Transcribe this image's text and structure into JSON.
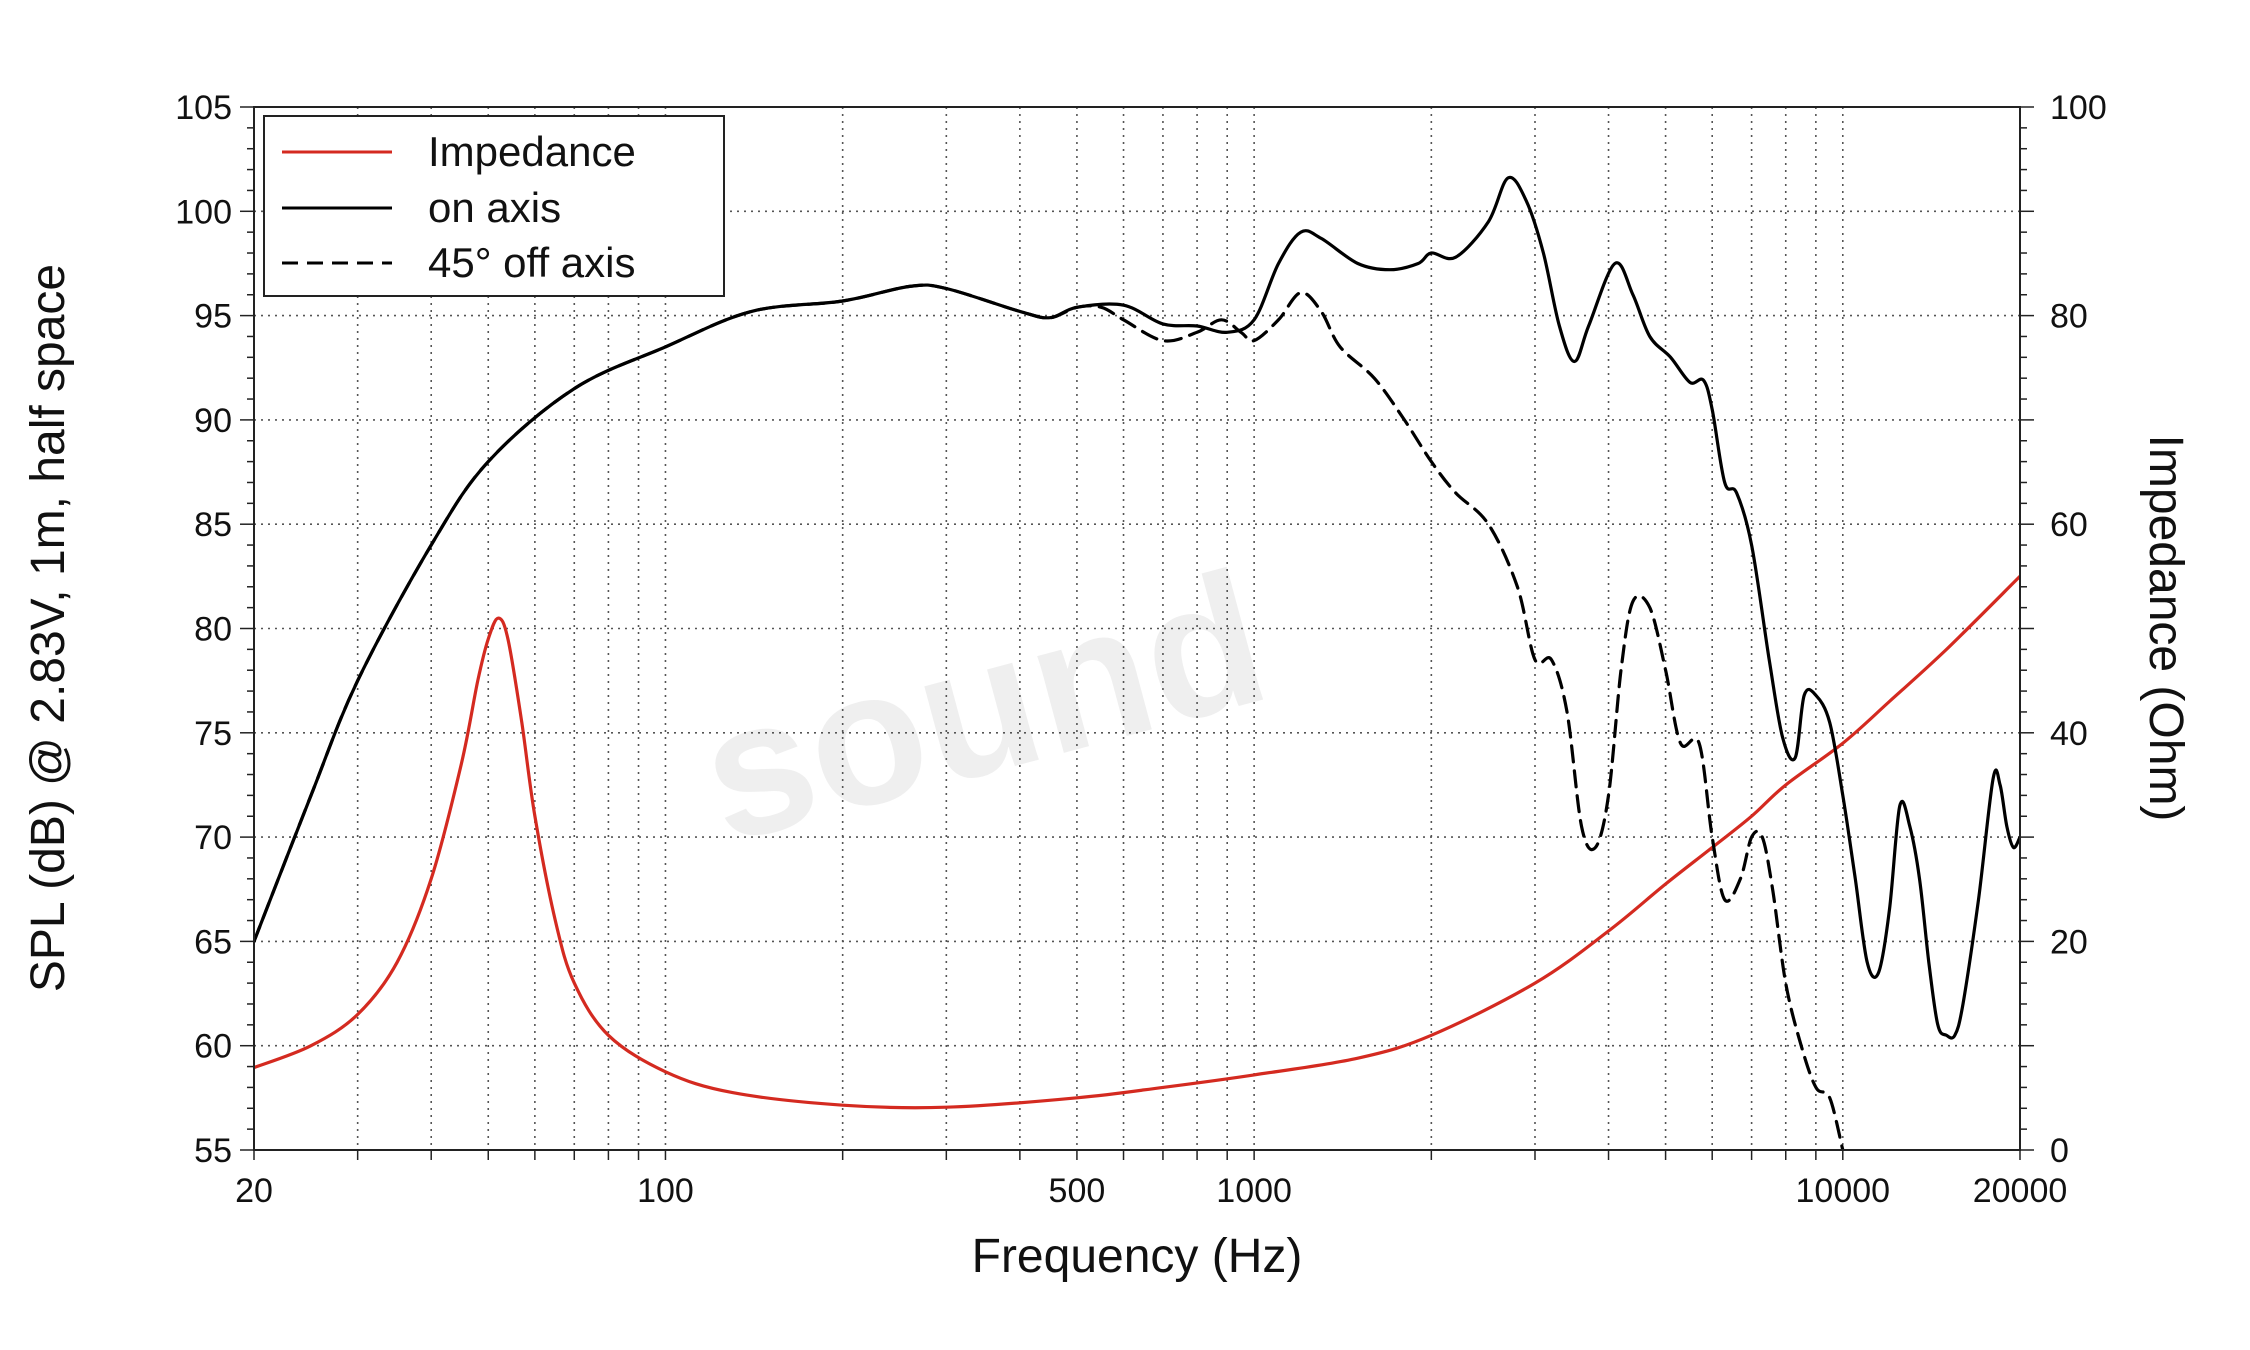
{
  "chart_data": {
    "type": "line",
    "xlabel": "Frequency (Hz)",
    "ylabel": "SPL (dB) @ 2.83V, 1m, half space",
    "y2label": "Impedance (Ohm)",
    "x_scale": "log",
    "xlim": [
      20,
      20000
    ],
    "ylim": [
      55,
      105
    ],
    "y2lim": [
      0,
      100
    ],
    "x_ticks": [
      {
        "value": 20,
        "label": "20"
      },
      {
        "value": 100,
        "label": "100"
      },
      {
        "value": 500,
        "label": "500"
      },
      {
        "value": 1000,
        "label": "1000"
      },
      {
        "value": 10000,
        "label": "10000"
      },
      {
        "value": 20000,
        "label": "20000"
      }
    ],
    "y_ticks": [
      55,
      60,
      65,
      70,
      75,
      80,
      85,
      90,
      95,
      100,
      105
    ],
    "y2_ticks": [
      0,
      20,
      40,
      60,
      80,
      100
    ],
    "grid": true,
    "legend_position": "top-left",
    "watermark": "sound",
    "series": [
      {
        "name": "Impedance",
        "axis": "right",
        "color": "#d42a20",
        "style": "solid",
        "points": [
          [
            20,
            7.9
          ],
          [
            25,
            10
          ],
          [
            30,
            13
          ],
          [
            35,
            18
          ],
          [
            40,
            26
          ],
          [
            45,
            37
          ],
          [
            48,
            45
          ],
          [
            50,
            49
          ],
          [
            52,
            51
          ],
          [
            54,
            49
          ],
          [
            57,
            41
          ],
          [
            60,
            32
          ],
          [
            65,
            22
          ],
          [
            70,
            16
          ],
          [
            80,
            11
          ],
          [
            100,
            7.5
          ],
          [
            130,
            5.5
          ],
          [
            200,
            4.3
          ],
          [
            300,
            4.1
          ],
          [
            500,
            5
          ],
          [
            700,
            6
          ],
          [
            1000,
            7.2
          ],
          [
            1500,
            8.8
          ],
          [
            2000,
            11
          ],
          [
            3000,
            16
          ],
          [
            4000,
            21
          ],
          [
            5000,
            25.5
          ],
          [
            6000,
            29
          ],
          [
            7000,
            32
          ],
          [
            8000,
            35
          ],
          [
            10000,
            39
          ],
          [
            12000,
            43
          ],
          [
            15000,
            48
          ],
          [
            20000,
            55
          ]
        ]
      },
      {
        "name": "on axis",
        "axis": "left",
        "color": "#000000",
        "style": "solid",
        "points": [
          [
            20,
            65
          ],
          [
            25,
            72
          ],
          [
            30,
            77.5
          ],
          [
            40,
            84
          ],
          [
            50,
            88
          ],
          [
            70,
            91.5
          ],
          [
            100,
            93.5
          ],
          [
            140,
            95.2
          ],
          [
            200,
            95.7
          ],
          [
            260,
            96.4
          ],
          [
            300,
            96.3
          ],
          [
            400,
            95.2
          ],
          [
            450,
            94.9
          ],
          [
            500,
            95.4
          ],
          [
            600,
            95.5
          ],
          [
            700,
            94.6
          ],
          [
            800,
            94.5
          ],
          [
            900,
            94.2
          ],
          [
            1000,
            94.8
          ],
          [
            1100,
            97.5
          ],
          [
            1200,
            99
          ],
          [
            1300,
            98.7
          ],
          [
            1500,
            97.5
          ],
          [
            1700,
            97.2
          ],
          [
            1900,
            97.5
          ],
          [
            2000,
            98
          ],
          [
            2200,
            97.8
          ],
          [
            2500,
            99.5
          ],
          [
            2700,
            101.6
          ],
          [
            2900,
            100.5
          ],
          [
            3100,
            98
          ],
          [
            3300,
            94.5
          ],
          [
            3500,
            92.8
          ],
          [
            3700,
            94.5
          ],
          [
            4100,
            97.5
          ],
          [
            4400,
            96
          ],
          [
            4700,
            94
          ],
          [
            5100,
            93
          ],
          [
            5500,
            91.8
          ],
          [
            5800,
            91.9
          ],
          [
            6000,
            90.5
          ],
          [
            6300,
            87
          ],
          [
            6600,
            86.5
          ],
          [
            7000,
            84
          ],
          [
            7500,
            78.5
          ],
          [
            7900,
            74.8
          ],
          [
            8300,
            73.8
          ],
          [
            8600,
            76.8
          ],
          [
            9000,
            76.8
          ],
          [
            9500,
            75.5
          ],
          [
            10000,
            72
          ],
          [
            10500,
            68
          ],
          [
            11000,
            64
          ],
          [
            11500,
            63.5
          ],
          [
            12000,
            66.5
          ],
          [
            12500,
            71.5
          ],
          [
            13000,
            70.5
          ],
          [
            13500,
            68
          ],
          [
            14000,
            64
          ],
          [
            14500,
            61
          ],
          [
            15000,
            60.5
          ],
          [
            15500,
            60.5
          ],
          [
            16000,
            62
          ],
          [
            17000,
            67
          ],
          [
            18000,
            72.8
          ],
          [
            18500,
            72.5
          ],
          [
            19000,
            70.5
          ],
          [
            19500,
            69.5
          ],
          [
            20000,
            70
          ]
        ]
      },
      {
        "name": "45° off axis",
        "axis": "left",
        "color": "#000000",
        "style": "dashed",
        "points": [
          [
            20,
            65
          ],
          [
            25,
            72
          ],
          [
            30,
            77.5
          ],
          [
            40,
            84
          ],
          [
            50,
            88
          ],
          [
            70,
            91.5
          ],
          [
            100,
            93.5
          ],
          [
            140,
            95.2
          ],
          [
            200,
            95.7
          ],
          [
            260,
            96.4
          ],
          [
            300,
            96.3
          ],
          [
            400,
            95.2
          ],
          [
            450,
            94.9
          ],
          [
            500,
            95.4
          ],
          [
            550,
            95.4
          ],
          [
            600,
            94.8
          ],
          [
            700,
            93.8
          ],
          [
            800,
            94.2
          ],
          [
            880,
            94.8
          ],
          [
            950,
            94.2
          ],
          [
            1000,
            93.8
          ],
          [
            1100,
            94.8
          ],
          [
            1200,
            96.1
          ],
          [
            1300,
            95.2
          ],
          [
            1400,
            93.5
          ],
          [
            1600,
            92
          ],
          [
            1800,
            90
          ],
          [
            2000,
            88
          ],
          [
            2200,
            86.5
          ],
          [
            2500,
            85
          ],
          [
            2800,
            82
          ],
          [
            3000,
            78.5
          ],
          [
            3200,
            78.5
          ],
          [
            3400,
            76
          ],
          [
            3600,
            70.5
          ],
          [
            3800,
            69.5
          ],
          [
            4000,
            72
          ],
          [
            4200,
            78
          ],
          [
            4400,
            81.3
          ],
          [
            4700,
            81
          ],
          [
            5000,
            78
          ],
          [
            5300,
            74.5
          ],
          [
            5700,
            74.5
          ],
          [
            6000,
            70
          ],
          [
            6300,
            67
          ],
          [
            6700,
            68
          ],
          [
            7000,
            70
          ],
          [
            7300,
            70
          ],
          [
            7600,
            67.5
          ],
          [
            8000,
            63
          ],
          [
            8500,
            60
          ],
          [
            9000,
            58
          ],
          [
            9500,
            57.5
          ],
          [
            10000,
            55
          ]
        ]
      }
    ]
  }
}
